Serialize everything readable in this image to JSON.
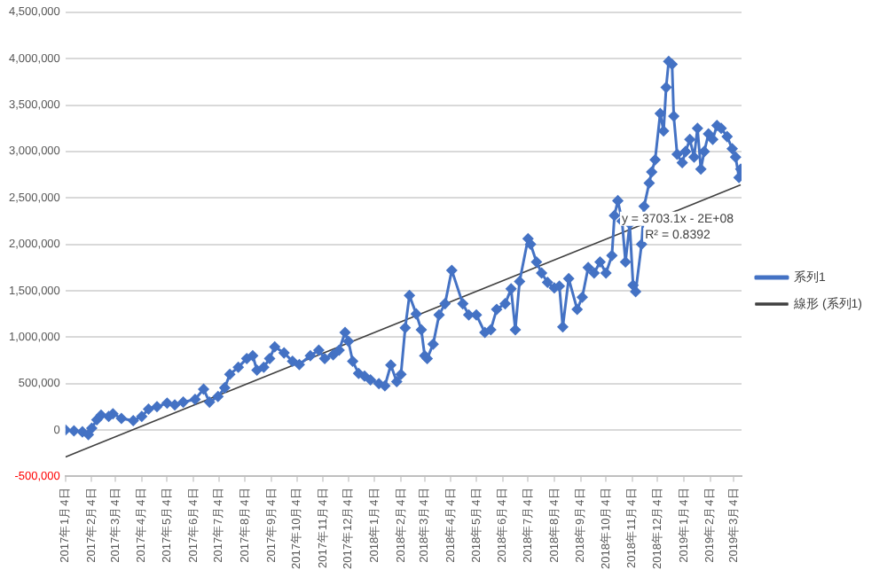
{
  "chart_data": {
    "type": "line",
    "xlim": [
      "2017-01-04",
      "2019-03-13"
    ],
    "xticks": [
      {
        "value": "2017-01-04",
        "label": "2017年1月4日"
      },
      {
        "value": "2017-02-04",
        "label": "2017年2月4日"
      },
      {
        "value": "2017-03-04",
        "label": "2017年3月4日"
      },
      {
        "value": "2017-04-04",
        "label": "2017年4月4日"
      },
      {
        "value": "2017-05-04",
        "label": "2017年5月4日"
      },
      {
        "value": "2017-06-04",
        "label": "2017年6月4日"
      },
      {
        "value": "2017-07-04",
        "label": "2017年7月4日"
      },
      {
        "value": "2017-08-04",
        "label": "2017年8月4日"
      },
      {
        "value": "2017-09-04",
        "label": "2017年9月4日"
      },
      {
        "value": "2017-10-04",
        "label": "2017年10月4日"
      },
      {
        "value": "2017-11-04",
        "label": "2017年11月4日"
      },
      {
        "value": "2017-12-04",
        "label": "2017年12月4日"
      },
      {
        "value": "2018-01-04",
        "label": "2018年1月4日"
      },
      {
        "value": "2018-02-04",
        "label": "2018年2月4日"
      },
      {
        "value": "2018-03-04",
        "label": "2018年3月4日"
      },
      {
        "value": "2018-04-04",
        "label": "2018年4月4日"
      },
      {
        "value": "2018-05-04",
        "label": "2018年5月4日"
      },
      {
        "value": "2018-06-04",
        "label": "2018年6月4日"
      },
      {
        "value": "2018-07-04",
        "label": "2018年7月4日"
      },
      {
        "value": "2018-08-04",
        "label": "2018年8月4日"
      },
      {
        "value": "2018-09-04",
        "label": "2018年9月4日"
      },
      {
        "value": "2018-10-04",
        "label": "2018年10月4日"
      },
      {
        "value": "2018-11-04",
        "label": "2018年11月4日"
      },
      {
        "value": "2018-12-04",
        "label": "2018年12月4日"
      },
      {
        "value": "2019-01-04",
        "label": "2019年1月4日"
      },
      {
        "value": "2019-02-04",
        "label": "2019年2月4日"
      },
      {
        "value": "2019-03-04",
        "label": "2019年3月4日"
      }
    ],
    "ylim": [
      -500000,
      4500000
    ],
    "yticks": [
      {
        "value": -500000,
        "label": "-500,000"
      },
      {
        "value": 0,
        "label": "0"
      },
      {
        "value": 500000,
        "label": "500,000"
      },
      {
        "value": 1000000,
        "label": "1,000,000"
      },
      {
        "value": 1500000,
        "label": "1,500,000"
      },
      {
        "value": 2000000,
        "label": "2,000,000"
      },
      {
        "value": 2500000,
        "label": "2,500,000"
      },
      {
        "value": 3000000,
        "label": "3,000,000"
      },
      {
        "value": 3500000,
        "label": "3,500,000"
      },
      {
        "value": 4000000,
        "label": "4,000,000"
      },
      {
        "value": 4500000,
        "label": "4,500,000"
      }
    ],
    "grid": "y",
    "legend": "right",
    "series": [
      {
        "name": "系列1",
        "color": "#4472c4",
        "marker": "diamond",
        "line_style": "solid",
        "x": [
          "2017-01-04",
          "2017-01-14",
          "2017-01-24",
          "2017-01-31",
          "2017-02-04",
          "2017-02-10",
          "2017-02-15",
          "2017-02-24",
          "2017-03-01",
          "2017-03-11",
          "2017-03-25",
          "2017-04-04",
          "2017-04-12",
          "2017-04-22",
          "2017-05-04",
          "2017-05-13",
          "2017-05-23",
          "2017-06-06",
          "2017-06-16",
          "2017-06-23",
          "2017-07-03",
          "2017-07-11",
          "2017-07-17",
          "2017-07-27",
          "2017-08-06",
          "2017-08-13",
          "2017-08-18",
          "2017-08-26",
          "2017-09-02",
          "2017-09-08",
          "2017-09-19",
          "2017-09-29",
          "2017-10-07",
          "2017-10-20",
          "2017-10-30",
          "2017-11-06",
          "2017-11-16",
          "2017-11-23",
          "2017-11-30",
          "2017-12-04",
          "2017-12-09",
          "2017-12-16",
          "2017-12-23",
          "2017-12-30",
          "2018-01-09",
          "2018-01-16",
          "2018-01-23",
          "2018-01-30",
          "2018-02-04",
          "2018-02-09",
          "2018-02-14",
          "2018-02-22",
          "2018-02-28",
          "2018-03-04",
          "2018-03-07",
          "2018-03-14",
          "2018-03-21",
          "2018-03-28",
          "2018-04-05",
          "2018-04-18",
          "2018-04-25",
          "2018-05-04",
          "2018-05-14",
          "2018-05-21",
          "2018-05-28",
          "2018-06-07",
          "2018-06-14",
          "2018-06-19",
          "2018-06-24",
          "2018-07-04",
          "2018-07-07",
          "2018-07-14",
          "2018-07-20",
          "2018-07-27",
          "2018-08-04",
          "2018-08-10",
          "2018-08-14",
          "2018-08-21",
          "2018-08-31",
          "2018-09-06",
          "2018-09-13",
          "2018-09-20",
          "2018-09-27",
          "2018-10-04",
          "2018-10-11",
          "2018-10-14",
          "2018-10-18",
          "2018-10-23",
          "2018-10-27",
          "2018-11-01",
          "2018-11-05",
          "2018-11-08",
          "2018-11-15",
          "2018-11-18",
          "2018-11-24",
          "2018-11-27",
          "2018-12-01",
          "2018-12-07",
          "2018-12-11",
          "2018-12-14",
          "2018-12-17",
          "2018-12-21",
          "2018-12-23",
          "2018-12-27",
          "2019-01-02",
          "2019-01-06",
          "2019-01-11",
          "2019-01-16",
          "2019-01-20",
          "2019-01-24",
          "2019-01-28",
          "2019-02-02",
          "2019-02-07",
          "2019-02-12",
          "2019-02-17",
          "2019-02-24",
          "2019-03-02",
          "2019-03-06",
          "2019-03-10",
          "2019-03-12"
        ],
        "values": [
          0,
          -10000,
          -20000,
          -50000,
          20000,
          110000,
          160000,
          145000,
          175000,
          125000,
          100000,
          145000,
          225000,
          250000,
          290000,
          270000,
          300000,
          330000,
          440000,
          300000,
          360000,
          455000,
          600000,
          675000,
          770000,
          800000,
          645000,
          675000,
          770000,
          895000,
          830000,
          740000,
          705000,
          800000,
          860000,
          770000,
          810000,
          860000,
          1050000,
          955000,
          740000,
          610000,
          580000,
          540000,
          500000,
          475000,
          700000,
          520000,
          600000,
          1100000,
          1450000,
          1250000,
          1080000,
          800000,
          770000,
          925000,
          1240000,
          1360000,
          1720000,
          1360000,
          1240000,
          1240000,
          1050000,
          1080000,
          1300000,
          1360000,
          1520000,
          1080000,
          1600000,
          2060000,
          2000000,
          1810000,
          1690000,
          1590000,
          1530000,
          1550000,
          1110000,
          1630000,
          1300000,
          1430000,
          1750000,
          1690000,
          1810000,
          1690000,
          1880000,
          2310000,
          2470000,
          2250000,
          1810000,
          2220000,
          1560000,
          1490000,
          2000000,
          2410000,
          2660000,
          2780000,
          2910000,
          3410000,
          3220000,
          3690000,
          3970000,
          3940000,
          3380000,
          2970000,
          2880000,
          3000000,
          3130000,
          2940000,
          3250000,
          2810000,
          3000000,
          3190000,
          3130000,
          3280000,
          3250000,
          3160000,
          3030000,
          2940000,
          2720000,
          2810000
        ]
      },
      {
        "name": "線形 (系列1)",
        "type": "line",
        "color": "#404040",
        "marker": "none",
        "line_style": "solid",
        "x": [
          "2017-01-04",
          "2019-03-12"
        ],
        "values": [
          -290000,
          2640000
        ]
      }
    ],
    "annotations": [
      "y = 3703.1x - 2E+08",
      "R² = 0.8392"
    ]
  }
}
